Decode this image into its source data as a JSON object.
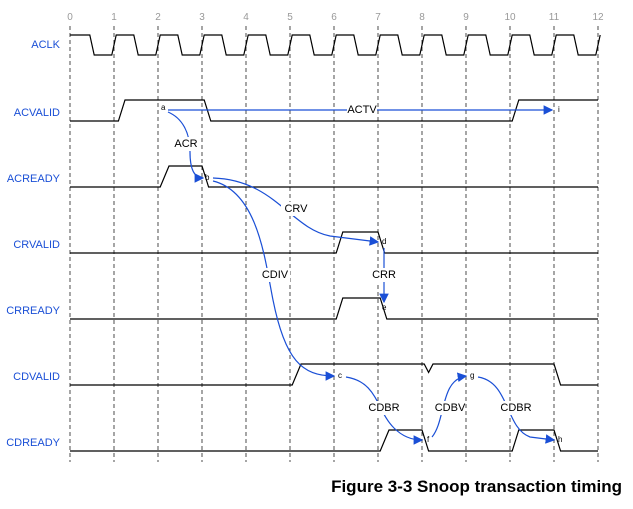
{
  "time_ticks": [
    0,
    1,
    2,
    3,
    4,
    5,
    6,
    7,
    8,
    9,
    10,
    11,
    12
  ],
  "signals": [
    "ACLK",
    "ACVALID",
    "ACREADY",
    "CRVALID",
    "CRREADY",
    "CDVALID",
    "CDREADY"
  ],
  "transitions": [
    "ACTV",
    "ACR",
    "CRV",
    "CDIV",
    "CRR",
    "CDBR",
    "CDBV",
    "CDBR"
  ],
  "points": [
    "a",
    "b",
    "c",
    "d",
    "e",
    "f",
    "g",
    "h",
    "i"
  ],
  "caption": "Figure 3-3 Snoop transaction timing"
}
